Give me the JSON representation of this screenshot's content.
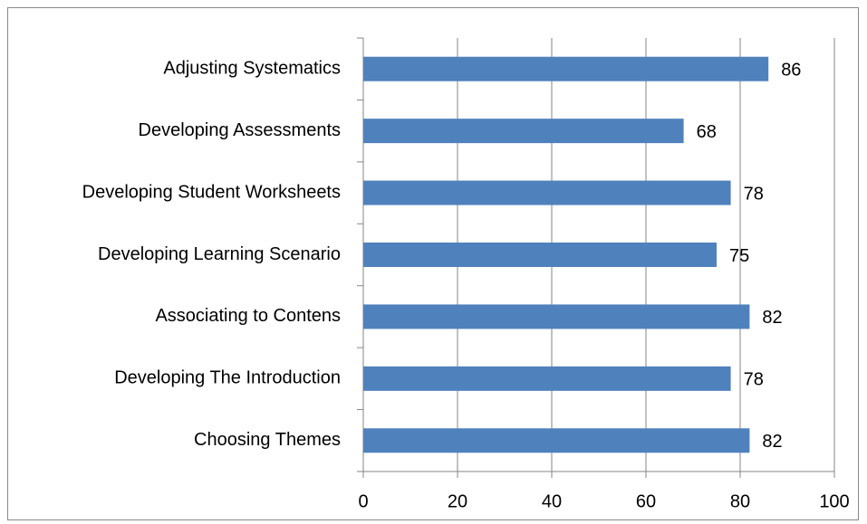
{
  "chart_data": {
    "type": "bar",
    "orientation": "horizontal",
    "categories": [
      "Adjusting Systematics",
      "Developing Assessments",
      "Developing Student Worksheets",
      "Developing Learning Scenario",
      "Associating to Contens",
      "Developing The Introduction",
      "Choosing Themes"
    ],
    "values": [
      86,
      68,
      78,
      75,
      82,
      78,
      82
    ],
    "color": "#4f81bd",
    "xlim": [
      0,
      100
    ],
    "xticks": [
      0,
      20,
      40,
      60,
      80,
      100
    ],
    "grid": true
  }
}
